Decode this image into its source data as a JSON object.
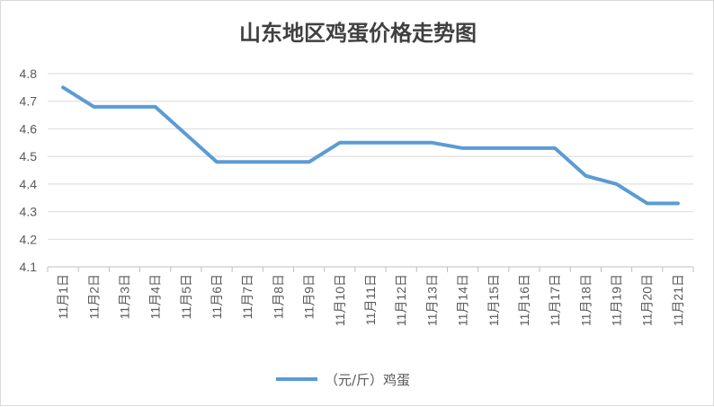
{
  "chart_data": {
    "type": "line",
    "title": "山东地区鸡蛋价格走势图",
    "xlabel": "",
    "ylabel": "",
    "categories": [
      "11月1日",
      "11月2日",
      "11月3日",
      "11月4日",
      "11月5日",
      "11月6日",
      "11月7日",
      "11月8日",
      "11月9日",
      "11月10日",
      "11月11日",
      "11月12日",
      "11月13日",
      "11月14日",
      "11月15日",
      "11月16日",
      "11月17日",
      "11月18日",
      "11月19日",
      "11月20日",
      "11月21日"
    ],
    "series": [
      {
        "name": "（元/斤）鸡蛋",
        "color": "#5b9bd5",
        "values": [
          4.75,
          4.68,
          4.68,
          4.68,
          4.58,
          4.48,
          4.48,
          4.48,
          4.48,
          4.55,
          4.55,
          4.55,
          4.55,
          4.53,
          4.53,
          4.53,
          4.53,
          4.43,
          4.4,
          4.33,
          4.33
        ]
      }
    ],
    "ylim": [
      4.1,
      4.8
    ],
    "yticks": [
      "4.1",
      "4.2",
      "4.3",
      "4.4",
      "4.5",
      "4.6",
      "4.7",
      "4.8"
    ],
    "grid": true,
    "legend": "bottom"
  }
}
